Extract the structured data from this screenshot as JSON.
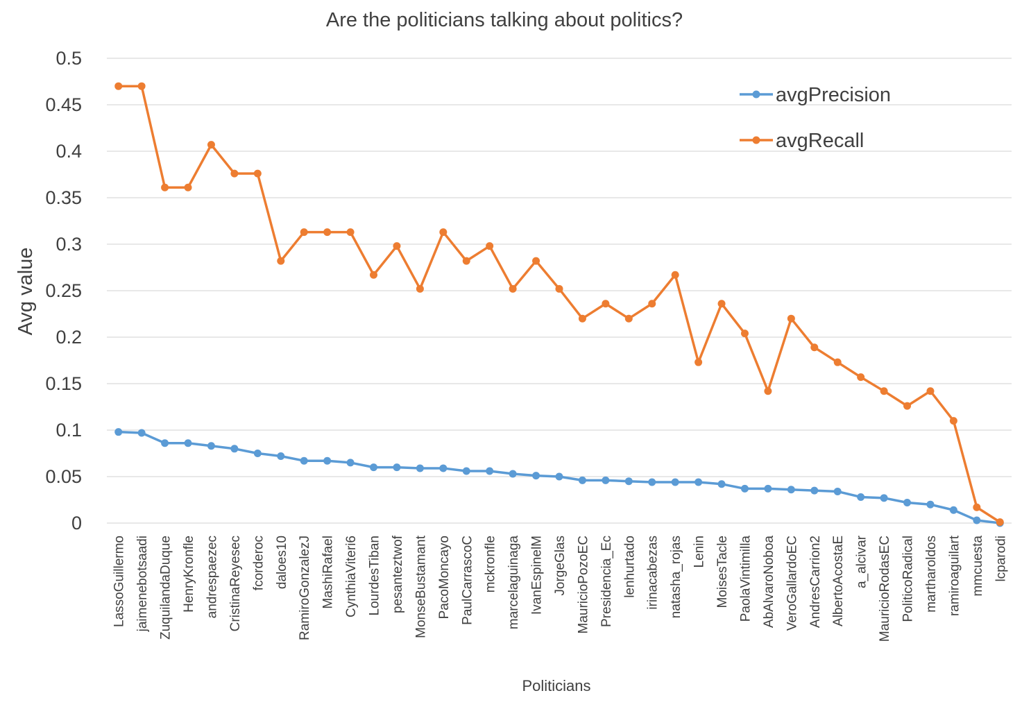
{
  "chart_data": {
    "type": "line",
    "title": "Are the politicians talking about politics?",
    "xlabel": "Politicians",
    "ylabel": "Avg value",
    "ylim": [
      0,
      0.5
    ],
    "yticks": [
      "0",
      "0.05",
      "0.1",
      "0.15",
      "0.2",
      "0.25",
      "0.3",
      "0.35",
      "0.4",
      "0.45",
      "0.5"
    ],
    "grid": true,
    "legend_position": "top-right",
    "categories": [
      "LassoGuillermo",
      "jaimenebotsaadi",
      "ZuquilandaDuque",
      "HenryKronfle",
      "andrespaezec",
      "CristinaReyesec",
      "fcorderoc",
      "daloes10",
      "RamiroGonzalezJ",
      "MashiRafael",
      "CynthiaViteri6",
      "LourdesTiban",
      "pesanteztwof",
      "MonseBustamant",
      "PacoMoncayo",
      "PaulCarrascoC",
      "mckronfle",
      "marcelaguinaga",
      "IvanEspinelM",
      "JorgeGlas",
      "MauricioPozoEC",
      "Presidencia_Ec",
      "lenhurtado",
      "irinacabezas",
      "natasha_rojas",
      "Lenin",
      "MoisesTacle",
      "PaolaVintimilla",
      "AbAlvaroNoboa",
      "VeroGallardoEC",
      "AndresCarrion2",
      "AlbertoAcostaE",
      "a_alcivar",
      "MauricioRodasEC",
      "PoliticoRadical",
      "martharoldos",
      "ramiroaguilart",
      "mmcuesta",
      "lcparodi"
    ],
    "series": [
      {
        "name": "avgPrecision",
        "color": "#5b9bd5",
        "values": [
          0.098,
          0.097,
          0.086,
          0.086,
          0.083,
          0.08,
          0.075,
          0.072,
          0.067,
          0.067,
          0.065,
          0.06,
          0.06,
          0.059,
          0.059,
          0.056,
          0.056,
          0.053,
          0.051,
          0.05,
          0.046,
          0.046,
          0.045,
          0.044,
          0.044,
          0.044,
          0.042,
          0.037,
          0.037,
          0.036,
          0.035,
          0.034,
          0.028,
          0.027,
          0.022,
          0.02,
          0.014,
          0.003,
          0.0
        ]
      },
      {
        "name": "avgRecall",
        "color": "#ed7d31",
        "values": [
          0.47,
          0.47,
          0.361,
          0.361,
          0.407,
          0.376,
          0.376,
          0.282,
          0.313,
          0.313,
          0.313,
          0.267,
          0.298,
          0.252,
          0.313,
          0.282,
          0.298,
          0.252,
          0.282,
          0.252,
          0.22,
          0.236,
          0.22,
          0.236,
          0.267,
          0.173,
          0.236,
          0.204,
          0.142,
          0.22,
          0.189,
          0.173,
          0.157,
          0.142,
          0.126,
          0.142,
          0.11,
          0.017,
          0.001
        ]
      }
    ]
  }
}
